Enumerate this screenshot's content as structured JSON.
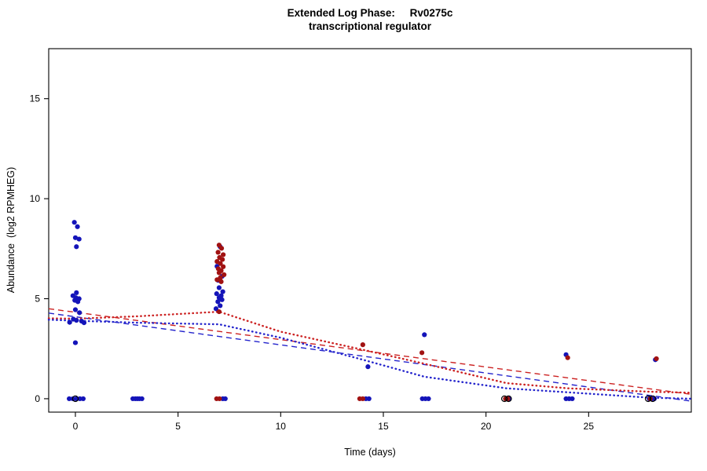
{
  "title": {
    "line1": "Extended Log Phase:     Rv0275c",
    "line2": "transcriptional regulator"
  },
  "chart_data": {
    "type": "scatter",
    "title": "Extended Log Phase: Rv0275c transcriptional regulator",
    "xlabel": "Time  (days)",
    "ylabel": "Abundance  (log2 RPMHEG)",
    "xlim": [
      -1.3,
      30
    ],
    "ylim": [
      -0.67,
      17.5
    ],
    "xticks": [
      0,
      5,
      10,
      15,
      20,
      25
    ],
    "yticks": [
      0,
      5,
      10,
      15
    ],
    "grid": false,
    "legend": "none",
    "colors": {
      "blue_points": "#1414b9",
      "red_points": "#a11212",
      "blue_lines": "#2424cc",
      "red_lines": "#cc2222",
      "open_circles": "#000000"
    },
    "series": [
      {
        "name": "blue-samples",
        "marker": "circle",
        "color": "#1414b9",
        "points": [
          [
            -0.05,
            8.82
          ],
          [
            0.1,
            8.6
          ],
          [
            0.0,
            8.05
          ],
          [
            0.18,
            7.98
          ],
          [
            0.05,
            7.6
          ],
          [
            0.05,
            5.3
          ],
          [
            -0.12,
            5.15
          ],
          [
            0.02,
            5.05
          ],
          [
            0.18,
            5.0
          ],
          [
            -0.03,
            4.92
          ],
          [
            0.12,
            4.85
          ],
          [
            0.0,
            4.45
          ],
          [
            0.2,
            4.3
          ],
          [
            -0.1,
            3.98
          ],
          [
            0.05,
            3.92
          ],
          [
            0.3,
            3.88
          ],
          [
            -0.28,
            3.82
          ],
          [
            0.42,
            3.8
          ],
          [
            0.0,
            2.8
          ],
          [
            -0.3,
            0
          ],
          [
            -0.12,
            0
          ],
          [
            0.05,
            0
          ],
          [
            0.22,
            0
          ],
          [
            0.38,
            0
          ],
          [
            2.8,
            0
          ],
          [
            2.92,
            0
          ],
          [
            3.02,
            0
          ],
          [
            3.12,
            0
          ],
          [
            3.24,
            0
          ],
          [
            7.05,
            7.6
          ],
          [
            6.9,
            6.62
          ],
          [
            7.15,
            6.12
          ],
          [
            6.95,
            5.92
          ],
          [
            7.0,
            5.55
          ],
          [
            7.18,
            5.35
          ],
          [
            6.88,
            5.25
          ],
          [
            7.1,
            5.15
          ],
          [
            7.0,
            5.05
          ],
          [
            7.14,
            4.95
          ],
          [
            6.94,
            4.85
          ],
          [
            7.05,
            4.65
          ],
          [
            6.85,
            4.5
          ],
          [
            7.18,
            0
          ],
          [
            7.3,
            0
          ],
          [
            14.25,
            1.6
          ],
          [
            14.15,
            0
          ],
          [
            14.3,
            0
          ],
          [
            17.0,
            3.2
          ],
          [
            16.9,
            0
          ],
          [
            17.05,
            0
          ],
          [
            17.2,
            0
          ],
          [
            21.0,
            0
          ],
          [
            21.12,
            0
          ],
          [
            23.9,
            2.2
          ],
          [
            23.9,
            0
          ],
          [
            24.05,
            0
          ],
          [
            24.2,
            0
          ],
          [
            28.25,
            1.95
          ],
          [
            27.95,
            0
          ],
          [
            28.08,
            0
          ],
          [
            28.2,
            0
          ]
        ]
      },
      {
        "name": "red-samples",
        "marker": "circle",
        "color": "#a11212",
        "points": [
          [
            7.0,
            7.68
          ],
          [
            7.12,
            7.52
          ],
          [
            6.95,
            7.32
          ],
          [
            7.2,
            7.2
          ],
          [
            7.02,
            7.06
          ],
          [
            7.16,
            6.96
          ],
          [
            6.9,
            6.86
          ],
          [
            7.06,
            6.76
          ],
          [
            7.2,
            6.6
          ],
          [
            6.96,
            6.5
          ],
          [
            7.1,
            6.4
          ],
          [
            7.0,
            6.3
          ],
          [
            7.24,
            6.2
          ],
          [
            7.06,
            6.05
          ],
          [
            6.9,
            5.95
          ],
          [
            7.1,
            5.85
          ],
          [
            7.0,
            4.35
          ],
          [
            6.88,
            0
          ],
          [
            7.02,
            0
          ],
          [
            14.0,
            2.7
          ],
          [
            13.85,
            0
          ],
          [
            14.0,
            0
          ],
          [
            16.88,
            2.3
          ],
          [
            20.95,
            0
          ],
          [
            21.06,
            0
          ],
          [
            23.98,
            2.05
          ],
          [
            28.3,
            2.0
          ],
          [
            28.0,
            0
          ]
        ]
      },
      {
        "name": "censored-open-circles",
        "marker": "open-circle",
        "color": "#000000",
        "points": [
          [
            0.0,
            0
          ],
          [
            20.9,
            0
          ],
          [
            21.1,
            0
          ],
          [
            27.9,
            0
          ],
          [
            28.12,
            0
          ]
        ]
      }
    ],
    "lines": [
      {
        "name": "blue-linear-trend",
        "style": "dashed",
        "color": "#2424cc",
        "points": [
          [
            -1.3,
            4.28
          ],
          [
            30,
            -0.12
          ]
        ]
      },
      {
        "name": "red-linear-trend",
        "style": "dashed",
        "color": "#cc2222",
        "points": [
          [
            -1.3,
            4.5
          ],
          [
            30,
            0.22
          ]
        ]
      },
      {
        "name": "red-smooth-trend",
        "style": "dotted",
        "color": "#cc2222",
        "points": [
          [
            -1.3,
            4.02
          ],
          [
            0,
            4.0
          ],
          [
            3,
            4.12
          ],
          [
            7,
            4.35
          ],
          [
            10,
            3.35
          ],
          [
            14,
            2.45
          ],
          [
            17,
            1.75
          ],
          [
            21,
            0.78
          ],
          [
            24,
            0.52
          ],
          [
            28,
            0.35
          ],
          [
            30,
            0.3
          ]
        ]
      },
      {
        "name": "blue-smooth-trend",
        "style": "dotted",
        "color": "#2424cc",
        "points": [
          [
            -1.3,
            3.95
          ],
          [
            0,
            3.9
          ],
          [
            3,
            3.8
          ],
          [
            7,
            3.72
          ],
          [
            10,
            3.05
          ],
          [
            14,
            1.95
          ],
          [
            17,
            1.1
          ],
          [
            21,
            0.52
          ],
          [
            24,
            0.32
          ],
          [
            28,
            0.05
          ],
          [
            30,
            0.0
          ]
        ]
      }
    ]
  }
}
